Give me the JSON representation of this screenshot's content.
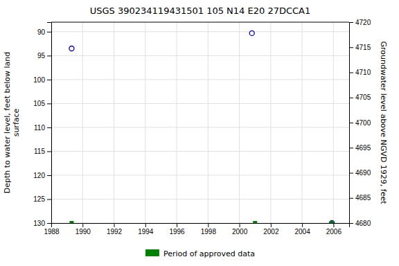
{
  "chart_data": {
    "type": "scatter",
    "title": "USGS 390234119431501 105  N14 E20 27DCCA1",
    "ylabel": "Depth to water level, feet below land\nsurface",
    "y2label": "Groundwater level above NGVD 1929, feet",
    "xlim": [
      1988,
      2007
    ],
    "xticks": [
      1988,
      1990,
      1992,
      1994,
      1996,
      1998,
      2000,
      2002,
      2004,
      2006
    ],
    "ylim": [
      130,
      88
    ],
    "yticks": [
      90,
      95,
      100,
      105,
      110,
      115,
      120,
      125,
      130
    ],
    "y2lim": [
      4680,
      4720
    ],
    "y2ticks": [
      4720,
      4715,
      4710,
      4705,
      4700,
      4695,
      4690,
      4685,
      4680
    ],
    "grid": true,
    "legend": "bottom",
    "series": [
      {
        "color": "#0000bb",
        "marker": "circle-open",
        "x": [
          1989.3,
          2000.8,
          2005.9
        ],
        "values": [
          93.5,
          90.3,
          130.0
        ]
      },
      {
        "name": "Period of approved data",
        "color": "#008000",
        "marker": "square",
        "x": [
          1989.3,
          2001.0,
          2005.9
        ],
        "values": [
          130,
          130,
          130
        ]
      }
    ]
  }
}
